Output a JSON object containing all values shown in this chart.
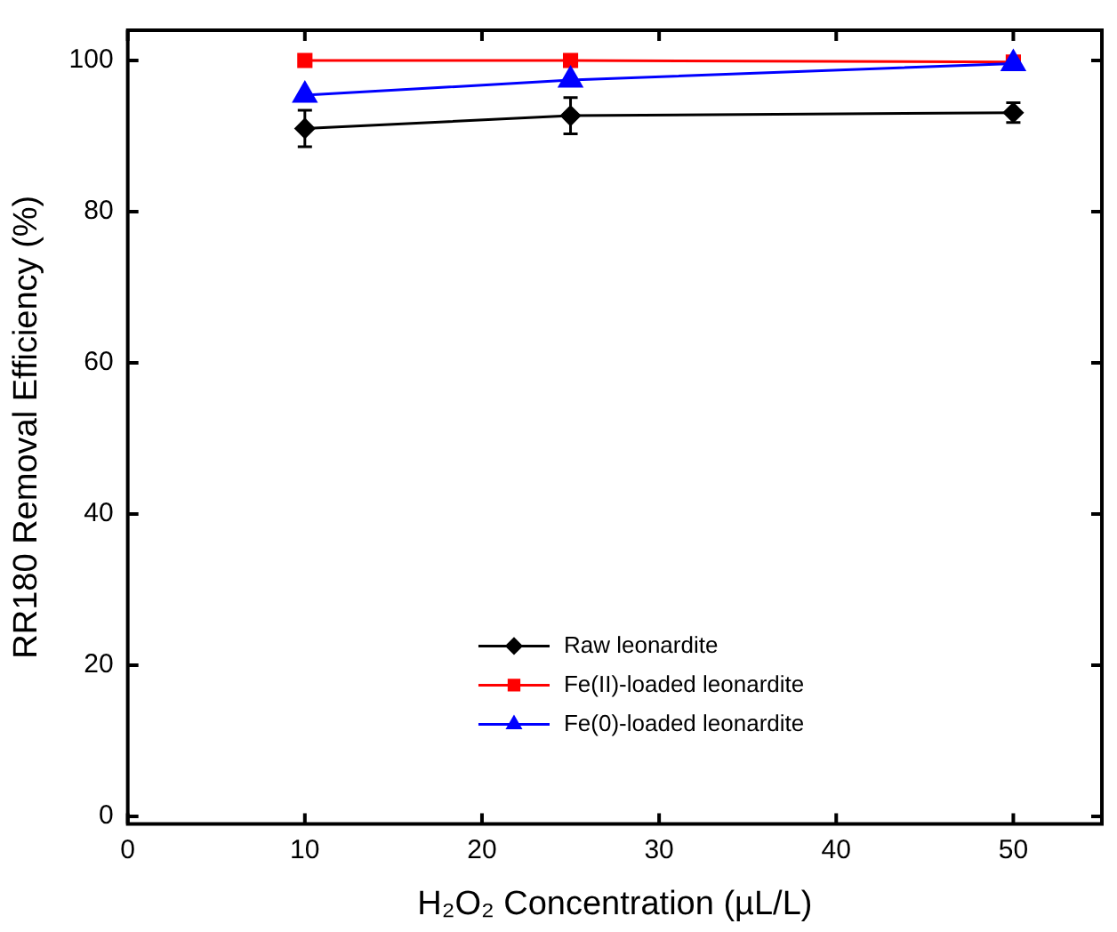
{
  "chart_data": {
    "type": "line",
    "xlabel": "H₂O₂ Concentration (µL/L)",
    "ylabel": "RR180 Removal Efficiency (%)",
    "x": [
      10,
      25,
      50
    ],
    "series": [
      {
        "name": "Raw leonardite",
        "color": "#000000",
        "marker": "diamond",
        "values": [
          91.0,
          92.7,
          93.1
        ],
        "errors": [
          2.4,
          2.4,
          1.3
        ]
      },
      {
        "name": "Fe(II)-loaded leonardite",
        "color": "#ff0000",
        "marker": "square",
        "values": [
          100,
          100,
          99.8
        ]
      },
      {
        "name": "Fe(0)-loaded leonardite",
        "color": "#0000ff",
        "marker": "triangle",
        "values": [
          95.4,
          97.4,
          99.6
        ]
      }
    ],
    "xlim": [
      0,
      55
    ],
    "xticks": [
      0,
      10,
      20,
      30,
      40,
      50
    ],
    "ylim": [
      -1,
      104
    ],
    "yticks": [
      0,
      20,
      40,
      60,
      80,
      100
    ],
    "grid": false,
    "legend": "bottom right"
  }
}
